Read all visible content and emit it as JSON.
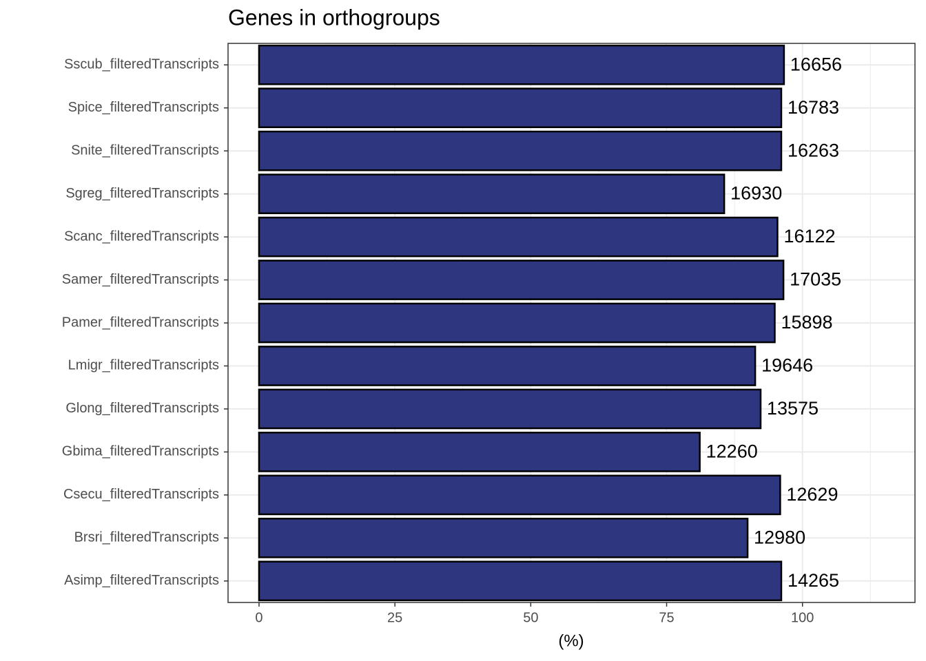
{
  "chart_data": {
    "type": "barh",
    "title": "Genes in orthogroups",
    "x_label": "(%)",
    "categories": [
      "Sscub_filteredTranscripts",
      "Spice_filteredTranscripts",
      "Snite_filteredTranscripts",
      "Sgreg_filteredTranscripts",
      "Scanc_filteredTranscripts",
      "Samer_filteredTranscripts",
      "Pamer_filteredTranscripts",
      "Lmigr_filteredTranscripts",
      "Glong_filteredTranscripts",
      "Gbima_filteredTranscripts",
      "Csecu_filteredTranscripts",
      "Brsri_filteredTranscripts",
      "Asimp_filteredTranscripts"
    ],
    "values": [
      96.6,
      96.1,
      96.1,
      85.6,
      95.4,
      96.5,
      94.9,
      91.3,
      92.3,
      81.1,
      95.9,
      89.9,
      96.1
    ],
    "bar_labels": [
      "16656",
      "16783",
      "16263",
      "16930",
      "16122",
      "17035",
      "15898",
      "19646",
      "13575",
      "12260",
      "12629",
      "12980",
      "14265"
    ],
    "color": "#2e367f",
    "xlim": [
      -5.7,
      120.7
    ],
    "xticks": [
      0,
      25,
      50,
      75,
      100
    ],
    "grid": true
  }
}
